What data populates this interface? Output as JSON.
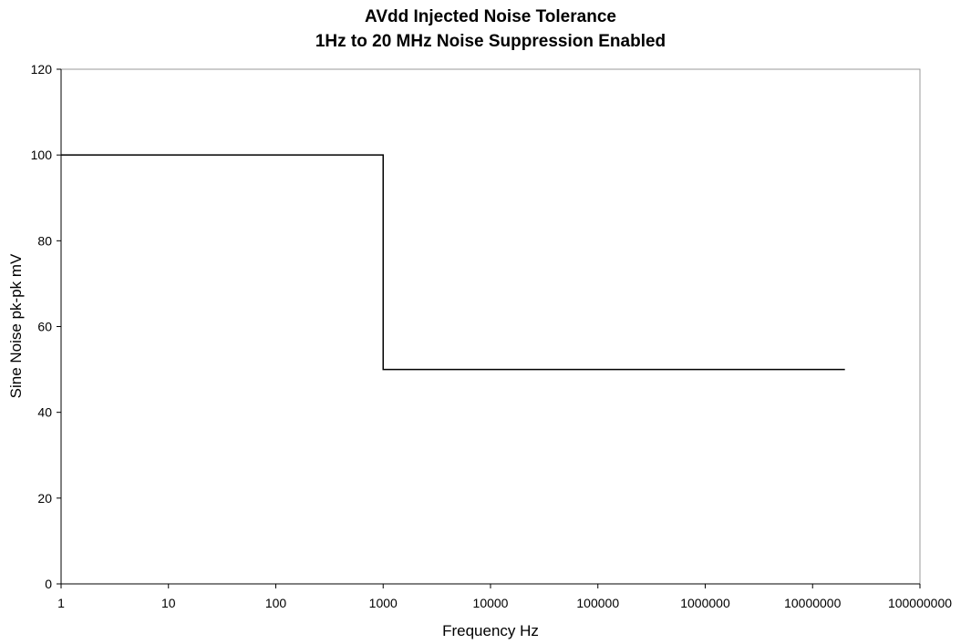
{
  "chart_data": {
    "type": "line",
    "title": "AVdd Injected Noise Tolerance",
    "subtitle": "1Hz to 20 MHz Noise Suppression Enabled",
    "xlabel": "Frequency Hz",
    "ylabel": "Sine Noise pk-pk mV",
    "x_scale": "log",
    "xlim": [
      1,
      100000000
    ],
    "ylim": [
      0,
      120
    ],
    "x_ticks": [
      1,
      10,
      100,
      1000,
      10000,
      100000,
      1000000,
      10000000,
      100000000
    ],
    "x_tick_labels": [
      "1",
      "10",
      "100",
      "1000",
      "10000",
      "100000",
      "1000000",
      "10000000",
      "100000000"
    ],
    "y_ticks": [
      0,
      20,
      40,
      60,
      80,
      100,
      120
    ],
    "y_tick_labels": [
      "0",
      "20",
      "40",
      "60",
      "80",
      "100",
      "120"
    ],
    "grid": false,
    "legend": "none",
    "series": [
      {
        "color": "#000000",
        "x": [
          1,
          1000,
          1000,
          20000000
        ],
        "y": [
          100,
          100,
          50,
          50
        ]
      }
    ]
  }
}
